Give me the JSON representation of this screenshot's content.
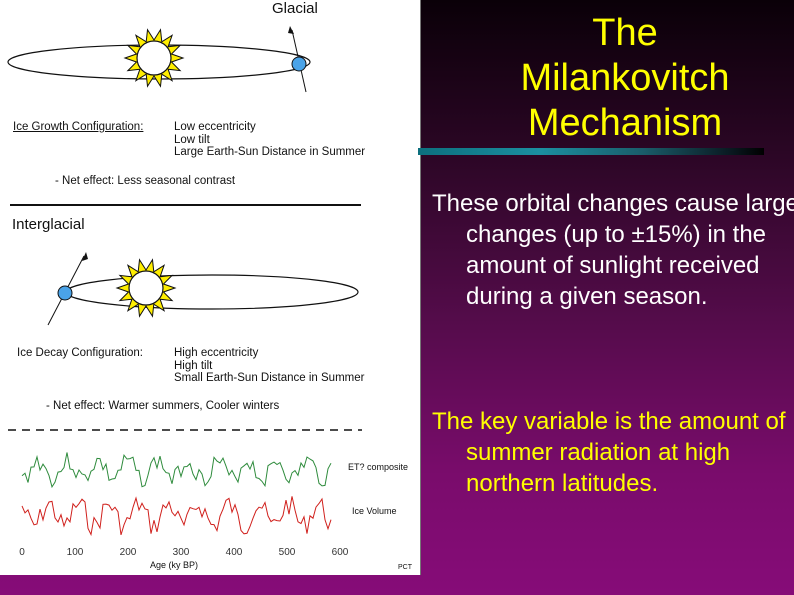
{
  "figure": {
    "glacial_label": "Glacial",
    "glacial_config_label": "Ice Growth Configuration:",
    "glacial_config_lines": [
      "Low eccentricity",
      "Low tilt",
      "Large Earth-Sun Distance in Summer"
    ],
    "glacial_effect": "- Net effect: Less seasonal contrast",
    "interglacial_label": "Interglacial",
    "interglacial_config_label": "Ice Decay Configuration:",
    "interglacial_config_lines": [
      "High eccentricity",
      "High tilt",
      "Small Earth-Sun Distance in Summer"
    ],
    "interglacial_effect": "- Net effect: Warmer summers, Cooler winters",
    "plot": {
      "series_top_label": "ET? composite",
      "series_bottom_label": "Ice Volume",
      "x_ticks": [
        "0",
        "100",
        "200",
        "300",
        "400",
        "500",
        "600"
      ],
      "x_axis_label": "Age (ky BP)",
      "corner_mark": "PCT",
      "colors": {
        "top": "#2e8b3c",
        "bottom": "#d0201c"
      }
    }
  },
  "title_lines": [
    "The",
    "Milankovitch",
    "Mechanism"
  ],
  "paragraph_1": "These orbital changes cause large changes (up to ±15%) in the amount of sunlight received during a given season.",
  "paragraph_2": "The key variable is the amount of summer radiation at high northern latitudes.",
  "colors": {
    "title": "#ffff00",
    "para1": "#ffffff",
    "para2": "#ffff00"
  }
}
